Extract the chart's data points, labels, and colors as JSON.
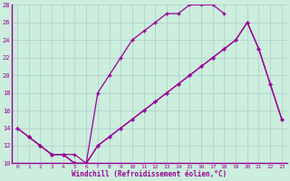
{
  "xlabel": "Windchill (Refroidissement éolien,°C)",
  "bg_color": "#cceedd",
  "line_color": "#990099",
  "grid_color": "#aacccc",
  "xlim": [
    -0.5,
    23.5
  ],
  "ylim": [
    10,
    28
  ],
  "xticks": [
    0,
    1,
    2,
    3,
    4,
    5,
    6,
    7,
    8,
    9,
    10,
    11,
    12,
    13,
    14,
    15,
    16,
    17,
    18,
    19,
    20,
    21,
    22,
    23
  ],
  "yticks": [
    10,
    12,
    14,
    16,
    18,
    20,
    22,
    24,
    26,
    28
  ],
  "line1_x": [
    0,
    1,
    2,
    3,
    4,
    5,
    6,
    7,
    8,
    9,
    10,
    11,
    12,
    13,
    14,
    15,
    16,
    17,
    18
  ],
  "line1_y": [
    14,
    13,
    12,
    11,
    11,
    11,
    10,
    18,
    20,
    22,
    24,
    25,
    26,
    27,
    27,
    28,
    28,
    28,
    27
  ],
  "line2_x": [
    0,
    1,
    2,
    3,
    4,
    5,
    6,
    7,
    8,
    9,
    10,
    11,
    12,
    13,
    14,
    15,
    16,
    17,
    18,
    19,
    20,
    21,
    22,
    23
  ],
  "line2_y": [
    14,
    13,
    12,
    11,
    11,
    10,
    10,
    12,
    13,
    14,
    15,
    16,
    17,
    18,
    19,
    20,
    21,
    22,
    23,
    24,
    26,
    23,
    19,
    15
  ],
  "line3_x": [
    1,
    2,
    3,
    4,
    5,
    6,
    7,
    8,
    9,
    10,
    11,
    12,
    13,
    14,
    15,
    16,
    17,
    18,
    19,
    20,
    21,
    22,
    23
  ],
  "line3_y": [
    13,
    12,
    11,
    11,
    10,
    10,
    12,
    13,
    14,
    15,
    16,
    17,
    18,
    19,
    20,
    21,
    22,
    23,
    24,
    26,
    23,
    19,
    15
  ]
}
